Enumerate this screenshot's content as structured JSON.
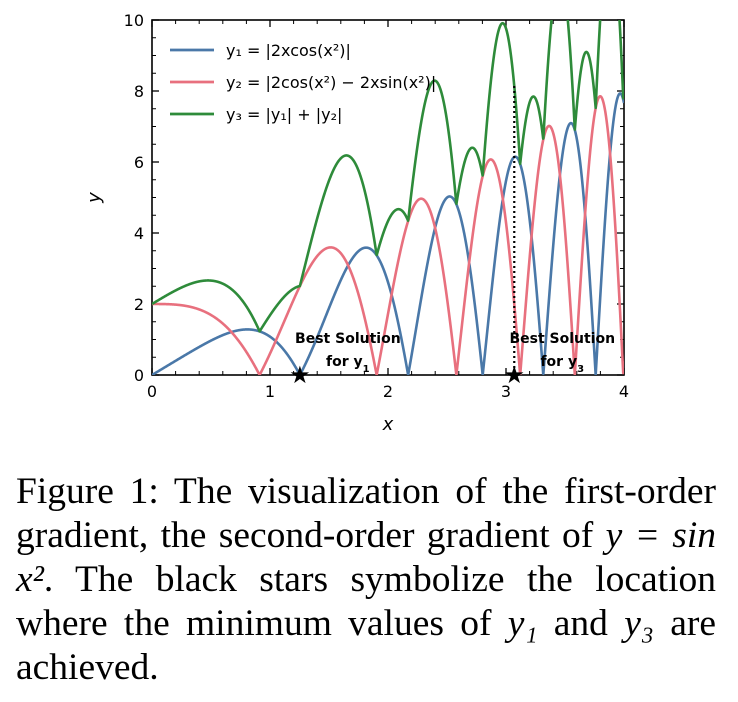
{
  "chart_data": {
    "type": "line",
    "xlabel": "x",
    "ylabel": "y",
    "xlim": [
      0,
      4
    ],
    "ylim": [
      0,
      10
    ],
    "xticks": [
      0,
      1,
      2,
      3,
      4
    ],
    "yticks": [
      0,
      2,
      4,
      6,
      8,
      10
    ],
    "grid": false,
    "legend_position": "top-left",
    "series": [
      {
        "name": "y₁ = |2xcos(x²)|",
        "color": "#4a78a8",
        "function": "abs(2*x*cos(x^2))"
      },
      {
        "name": "y₂ = |2cos(x²) − 2xsin(x²)|",
        "color": "#e8707e",
        "function": "abs(2*cos(x^2) - 2*x*sin(x^2))"
      },
      {
        "name": "y₃ = |y₁| + |y₂|",
        "color": "#2e8b3a",
        "function": "abs(y1) + abs(y2)"
      }
    ],
    "annotations": [
      {
        "text_line1": "Best Solution",
        "text_line2": "for y",
        "subscript": "1",
        "x": 1.253,
        "y": 0,
        "marker": "★"
      },
      {
        "text_line1": "Best Solution",
        "text_line2": "for y",
        "subscript": "3",
        "x": 3.07,
        "y": 0,
        "marker": "★"
      }
    ]
  },
  "caption": {
    "label": "Figure 1:",
    "text_a": " The visualization of the first-order gradient, the second-order gradient of ",
    "math_expr": "y = sin x²",
    "text_b": ". The black stars symbolize the location where the minimum values of ",
    "y1": "y₁",
    "text_and": " and ",
    "y3": "y₃",
    "text_end": " are achieved."
  }
}
